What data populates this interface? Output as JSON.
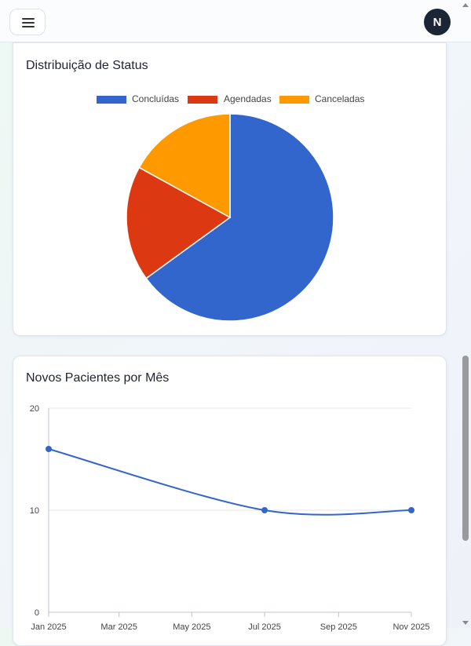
{
  "header": {
    "avatar_initial": "N"
  },
  "pie_card": {
    "title": "Distribuição de Status"
  },
  "line_card": {
    "title": "Novos Pacientes por Mês"
  },
  "colors": {
    "concluidas": "#3366cc",
    "agendadas": "#dc3912",
    "canceladas": "#ff9900"
  },
  "chart_data": [
    {
      "type": "pie",
      "title": "Distribuição de Status",
      "legend_position": "top",
      "slices": [
        {
          "label": "Concluídas",
          "value": 65,
          "color": "#3366cc"
        },
        {
          "label": "Agendadas",
          "value": 18,
          "color": "#dc3912"
        },
        {
          "label": "Canceladas",
          "value": 17,
          "color": "#ff9900"
        }
      ]
    },
    {
      "type": "line",
      "title": "Novos Pacientes por Mês",
      "x_ticks": [
        "Jan 2025",
        "Mar 2025",
        "May 2025",
        "Jul 2025",
        "Sep 2025",
        "Nov 2025"
      ],
      "y_ticks": [
        "0",
        "10",
        "20"
      ],
      "ylim": [
        0,
        20
      ],
      "grid": true,
      "series": [
        {
          "color": "#3366cc",
          "points": [
            {
              "x": "2025-01",
              "y": 16
            },
            {
              "x": "2025-07",
              "y": 10
            },
            {
              "x": "2025-11",
              "y": 10
            }
          ]
        }
      ]
    }
  ]
}
